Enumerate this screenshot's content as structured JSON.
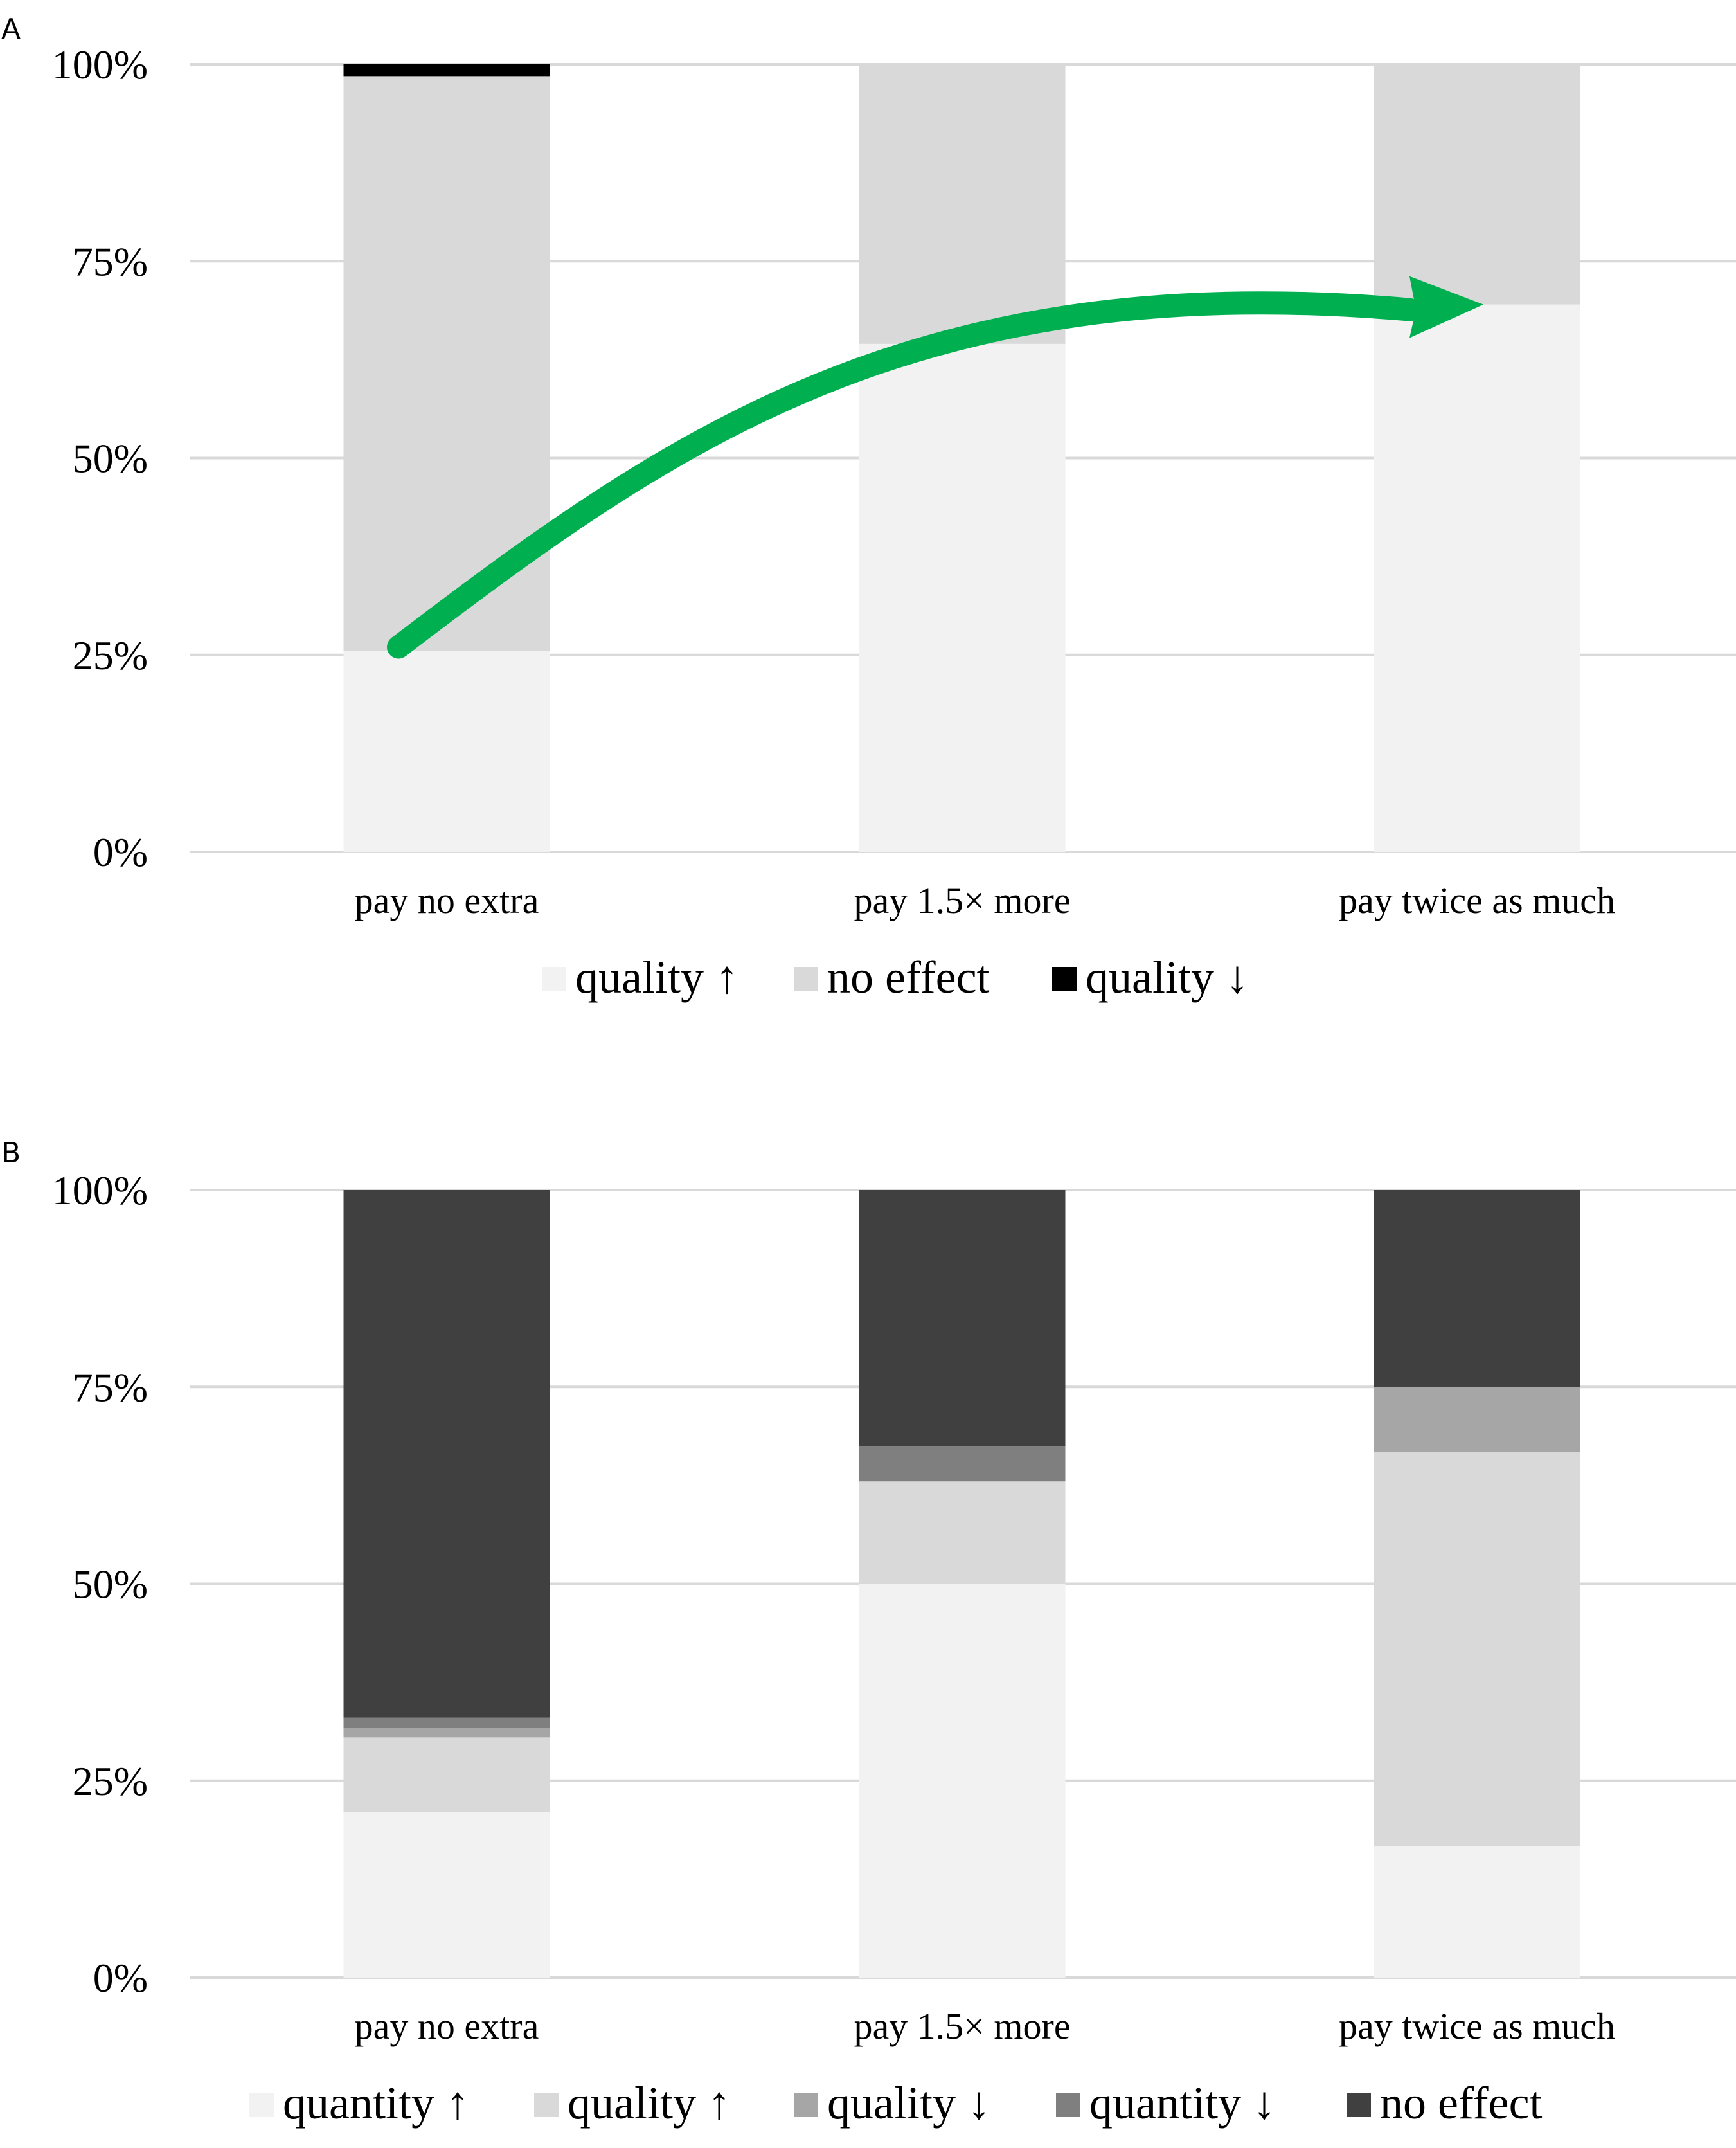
{
  "chart_data": [
    {
      "type": "bar",
      "panel": "A",
      "stacked": true,
      "categories": [
        "pay no extra",
        "pay 1.5× more",
        "pay twice as much"
      ],
      "series": [
        {
          "name": "quality ↑",
          "color": "#f2f2f2",
          "values": [
            25.5,
            64.5,
            69.5
          ]
        },
        {
          "name": "no effect",
          "color": "#d9d9d9",
          "values": [
            73,
            35.5,
            30.5
          ]
        },
        {
          "name": "quality ↓",
          "color": "#000000",
          "values": [
            1.5,
            0,
            0
          ]
        }
      ],
      "yticks": [
        "0%",
        "25%",
        "50%",
        "75%",
        "100%"
      ],
      "ylim": [
        0,
        100
      ],
      "grid": true,
      "legend": "bottom",
      "annotation": {
        "type": "arrow",
        "color": "#00b050",
        "from": {
          "x": "pay no extra",
          "y": 26
        },
        "to": {
          "x": "pay twice as much",
          "y": 69.5
        }
      }
    },
    {
      "type": "bar",
      "panel": "B",
      "stacked": true,
      "categories": [
        "pay no extra",
        "pay 1.5× more",
        "pay twice as much"
      ],
      "series": [
        {
          "name": "quantity ↑",
          "color": "#f2f2f2",
          "values": [
            21,
            50,
            16.7
          ]
        },
        {
          "name": "quality ↑",
          "color": "#d9d9d9",
          "values": [
            9.5,
            13,
            50
          ]
        },
        {
          "name": "quality ↓",
          "color": "#a6a6a6",
          "values": [
            1.25,
            0,
            8.3
          ]
        },
        {
          "name": "quantity ↓",
          "color": "#7f7f7f",
          "values": [
            1.25,
            4.5,
            0
          ]
        },
        {
          "name": "no effect",
          "color": "#404040",
          "values": [
            67,
            32.5,
            25
          ]
        }
      ],
      "yticks": [
        "0%",
        "25%",
        "50%",
        "75%",
        "100%"
      ],
      "ylim": [
        0,
        100
      ],
      "grid": true,
      "legend": "bottom"
    }
  ]
}
